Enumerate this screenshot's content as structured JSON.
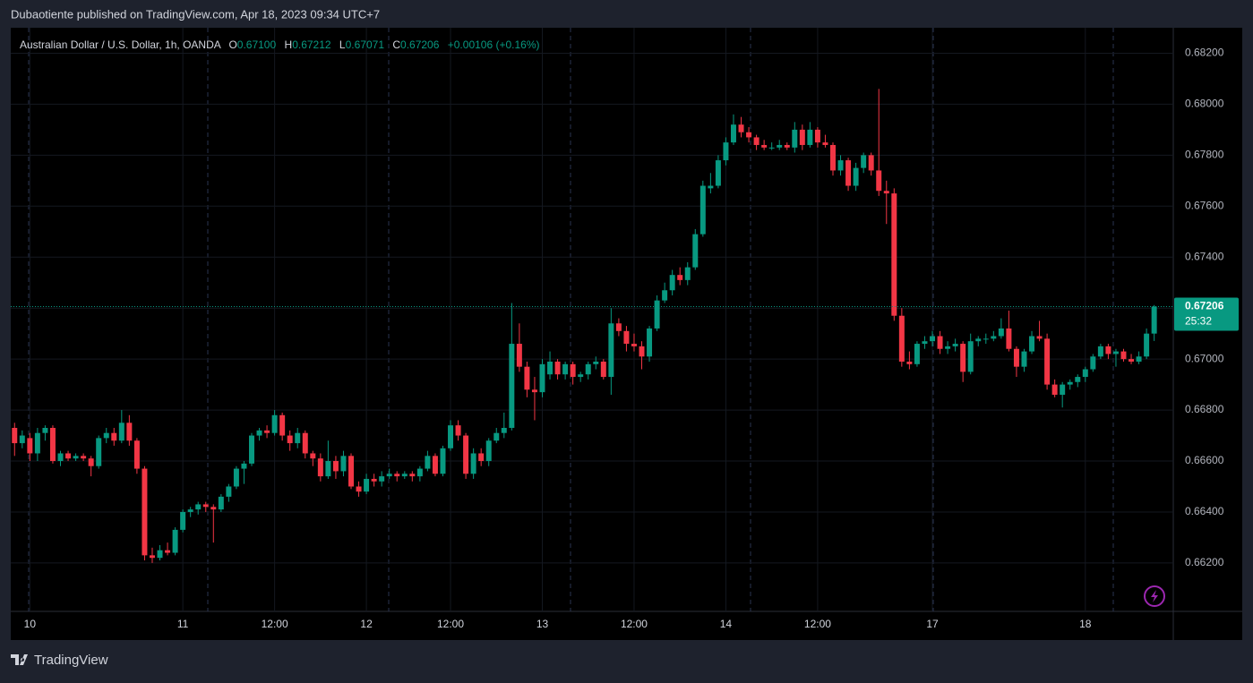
{
  "header": "Dubaotiente published on TradingView.com, Apr 18, 2023 09:34 UTC+7",
  "footer": "TradingView",
  "chart_data": {
    "type": "candlestick",
    "title": "Australian Dollar / U.S. Dollar, 1h, OANDA",
    "legend": {
      "o": "O",
      "open": {
        "value": 0.671,
        "label": "0.67100"
      },
      "h": "H",
      "high": 0.67212,
      "l": "L",
      "low": 0.67071,
      "c": "C",
      "close": 0.67206,
      "change": "+0.00106 (+0.16%)"
    },
    "up_color": "#089981",
    "down_color": "#f23645",
    "last_price": {
      "value": 0.67206,
      "label": "0.67206"
    },
    "countdown": "25:32",
    "grid": true,
    "xlim": [
      -0.5,
      151.5
    ],
    "xticks": [
      {
        "value": 2,
        "label": "10"
      },
      {
        "value": 22,
        "label": "11"
      },
      {
        "value": 34,
        "label": "12:00"
      },
      {
        "value": 46,
        "label": "12"
      },
      {
        "value": 57,
        "label": "12:00"
      },
      {
        "value": 69,
        "label": "13"
      },
      {
        "value": 81,
        "label": "12:00"
      },
      {
        "value": 93,
        "label": "14"
      },
      {
        "value": 105,
        "label": "12:00"
      },
      {
        "value": 120,
        "label": "17"
      },
      {
        "value": 140,
        "label": "18"
      }
    ],
    "ylim": [
      0.6601,
      0.683
    ],
    "yticks": [
      {
        "value": 0.662,
        "label": "0.66200"
      },
      {
        "value": 0.664,
        "label": "0.66400"
      },
      {
        "value": 0.666,
        "label": "0.66600"
      },
      {
        "value": 0.668,
        "label": "0.66800"
      },
      {
        "value": 0.67,
        "label": "0.67000"
      },
      {
        "value": 0.672,
        "label": "0.67200"
      },
      {
        "value": 0.674,
        "label": "0.67400"
      },
      {
        "value": 0.676,
        "label": "0.67600"
      },
      {
        "value": 0.678,
        "label": "0.67800"
      },
      {
        "value": 0.68,
        "label": "0.68000"
      },
      {
        "value": 0.682,
        "label": "0.68200"
      }
    ],
    "ohlc": [
      [
        0.6673,
        0.6675,
        0.6662,
        0.6667
      ],
      [
        0.6667,
        0.6672,
        0.6665,
        0.667
      ],
      [
        0.6669,
        0.6671,
        0.666,
        0.6663
      ],
      [
        0.6663,
        0.6673,
        0.666,
        0.6671
      ],
      [
        0.6671,
        0.6674,
        0.6668,
        0.6673
      ],
      [
        0.6673,
        0.6674,
        0.6659,
        0.666
      ],
      [
        0.666,
        0.6664,
        0.6658,
        0.6663
      ],
      [
        0.6663,
        0.6664,
        0.666,
        0.6661
      ],
      [
        0.6661,
        0.6663,
        0.666,
        0.6662
      ],
      [
        0.6662,
        0.6663,
        0.666,
        0.6661
      ],
      [
        0.6661,
        0.6662,
        0.6654,
        0.6658
      ],
      [
        0.6658,
        0.667,
        0.6657,
        0.6669
      ],
      [
        0.6669,
        0.6673,
        0.6667,
        0.6671
      ],
      [
        0.6671,
        0.6673,
        0.6666,
        0.6668
      ],
      [
        0.6668,
        0.668,
        0.6667,
        0.6675
      ],
      [
        0.6675,
        0.6678,
        0.6666,
        0.6668
      ],
      [
        0.6668,
        0.6669,
        0.6655,
        0.6657
      ],
      [
        0.6657,
        0.6658,
        0.6621,
        0.6623
      ],
      [
        0.6623,
        0.6626,
        0.662,
        0.6622
      ],
      [
        0.6622,
        0.6627,
        0.6621,
        0.6625
      ],
      [
        0.6625,
        0.6628,
        0.6623,
        0.6624
      ],
      [
        0.6624,
        0.6634,
        0.6623,
        0.6633
      ],
      [
        0.6633,
        0.6641,
        0.6632,
        0.664
      ],
      [
        0.664,
        0.6642,
        0.6638,
        0.6641
      ],
      [
        0.6641,
        0.6644,
        0.6639,
        0.6643
      ],
      [
        0.6643,
        0.6644,
        0.664,
        0.6642
      ],
      [
        0.6642,
        0.6643,
        0.6628,
        0.6641
      ],
      [
        0.6641,
        0.6647,
        0.664,
        0.6646
      ],
      [
        0.6646,
        0.6651,
        0.6644,
        0.665
      ],
      [
        0.665,
        0.6658,
        0.6649,
        0.6657
      ],
      [
        0.6657,
        0.666,
        0.6651,
        0.6659
      ],
      [
        0.6659,
        0.6671,
        0.6658,
        0.667
      ],
      [
        0.667,
        0.6673,
        0.6668,
        0.6672
      ],
      [
        0.6672,
        0.6674,
        0.6669,
        0.6671
      ],
      [
        0.6671,
        0.668,
        0.667,
        0.6678
      ],
      [
        0.6678,
        0.6679,
        0.6668,
        0.667
      ],
      [
        0.667,
        0.6672,
        0.6664,
        0.6667
      ],
      [
        0.6667,
        0.6673,
        0.6665,
        0.6671
      ],
      [
        0.6671,
        0.6672,
        0.6661,
        0.6663
      ],
      [
        0.6663,
        0.6664,
        0.6658,
        0.6661
      ],
      [
        0.6661,
        0.6663,
        0.6652,
        0.6654
      ],
      [
        0.6654,
        0.6668,
        0.6653,
        0.666
      ],
      [
        0.666,
        0.6662,
        0.6653,
        0.6656
      ],
      [
        0.6656,
        0.6664,
        0.6654,
        0.6662
      ],
      [
        0.6662,
        0.6663,
        0.6649,
        0.665
      ],
      [
        0.665,
        0.6652,
        0.6646,
        0.6648
      ],
      [
        0.6648,
        0.6655,
        0.6647,
        0.6653
      ],
      [
        0.6653,
        0.6655,
        0.665,
        0.6652
      ],
      [
        0.6652,
        0.6656,
        0.665,
        0.6654
      ],
      [
        0.6654,
        0.6657,
        0.6653,
        0.6655
      ],
      [
        0.6655,
        0.6656,
        0.6652,
        0.6654
      ],
      [
        0.6654,
        0.6656,
        0.6653,
        0.6655
      ],
      [
        0.6655,
        0.6656,
        0.6652,
        0.6654
      ],
      [
        0.6654,
        0.6658,
        0.6652,
        0.6657
      ],
      [
        0.6657,
        0.6664,
        0.6656,
        0.6662
      ],
      [
        0.6662,
        0.6663,
        0.6654,
        0.6655
      ],
      [
        0.6655,
        0.6666,
        0.6654,
        0.6665
      ],
      [
        0.6665,
        0.6676,
        0.6664,
        0.6674
      ],
      [
        0.6674,
        0.6676,
        0.6668,
        0.667
      ],
      [
        0.667,
        0.6671,
        0.6653,
        0.6655
      ],
      [
        0.6655,
        0.6665,
        0.6653,
        0.6663
      ],
      [
        0.6663,
        0.6665,
        0.6658,
        0.666
      ],
      [
        0.666,
        0.6669,
        0.6658,
        0.6668
      ],
      [
        0.6668,
        0.6673,
        0.6667,
        0.6671
      ],
      [
        0.6671,
        0.6679,
        0.6669,
        0.6673
      ],
      [
        0.6673,
        0.6722,
        0.6672,
        0.6706
      ],
      [
        0.6706,
        0.6714,
        0.6695,
        0.6697
      ],
      [
        0.6697,
        0.6699,
        0.6685,
        0.6688
      ],
      [
        0.6688,
        0.6693,
        0.6676,
        0.6687
      ],
      [
        0.6687,
        0.67,
        0.6685,
        0.6698
      ],
      [
        0.6694,
        0.6703,
        0.6692,
        0.6699
      ],
      [
        0.6699,
        0.67,
        0.6692,
        0.6694
      ],
      [
        0.6694,
        0.6699,
        0.6692,
        0.6698
      ],
      [
        0.6698,
        0.6699,
        0.669,
        0.6693
      ],
      [
        0.6693,
        0.6695,
        0.6691,
        0.6694
      ],
      [
        0.6694,
        0.6699,
        0.6692,
        0.6698
      ],
      [
        0.6698,
        0.6701,
        0.6696,
        0.6699
      ],
      [
        0.6699,
        0.67,
        0.6692,
        0.6693
      ],
      [
        0.6693,
        0.672,
        0.6686,
        0.6714
      ],
      [
        0.6714,
        0.6716,
        0.6709,
        0.6711
      ],
      [
        0.6711,
        0.6713,
        0.6703,
        0.6706
      ],
      [
        0.6706,
        0.671,
        0.6703,
        0.6705
      ],
      [
        0.6705,
        0.6707,
        0.6696,
        0.6701
      ],
      [
        0.6701,
        0.6713,
        0.6699,
        0.6712
      ],
      [
        0.6712,
        0.6725,
        0.6711,
        0.6723
      ],
      [
        0.6723,
        0.673,
        0.6722,
        0.6727
      ],
      [
        0.6727,
        0.6735,
        0.6725,
        0.6733
      ],
      [
        0.6733,
        0.6736,
        0.6729,
        0.6731
      ],
      [
        0.6731,
        0.6738,
        0.6729,
        0.6736
      ],
      [
        0.6736,
        0.6751,
        0.6735,
        0.6749
      ],
      [
        0.6749,
        0.677,
        0.6748,
        0.6768
      ],
      [
        0.6767,
        0.6773,
        0.6765,
        0.6768
      ],
      [
        0.6768,
        0.678,
        0.6767,
        0.6778
      ],
      [
        0.6778,
        0.6787,
        0.6776,
        0.6785
      ],
      [
        0.6785,
        0.6796,
        0.6784,
        0.6792
      ],
      [
        0.6792,
        0.6795,
        0.6787,
        0.6789
      ],
      [
        0.6789,
        0.6791,
        0.6785,
        0.6787
      ],
      [
        0.6787,
        0.6788,
        0.6782,
        0.6784
      ],
      [
        0.6784,
        0.6786,
        0.6782,
        0.6783
      ],
      [
        0.6783,
        0.6785,
        0.6782,
        0.6783
      ],
      [
        0.6783,
        0.6786,
        0.6782,
        0.6784
      ],
      [
        0.6784,
        0.6785,
        0.6782,
        0.6783
      ],
      [
        0.6783,
        0.6793,
        0.6781,
        0.679
      ],
      [
        0.679,
        0.6792,
        0.6782,
        0.6784
      ],
      [
        0.6784,
        0.6793,
        0.6783,
        0.679
      ],
      [
        0.679,
        0.6791,
        0.6783,
        0.6785
      ],
      [
        0.6785,
        0.6788,
        0.6783,
        0.6784
      ],
      [
        0.6784,
        0.6785,
        0.6772,
        0.6774
      ],
      [
        0.6774,
        0.678,
        0.6772,
        0.6778
      ],
      [
        0.6778,
        0.6779,
        0.6766,
        0.6768
      ],
      [
        0.6768,
        0.6777,
        0.6766,
        0.6775
      ],
      [
        0.6775,
        0.6781,
        0.6773,
        0.678
      ],
      [
        0.678,
        0.6781,
        0.6772,
        0.6774
      ],
      [
        0.6774,
        0.6806,
        0.6764,
        0.6766
      ],
      [
        0.6766,
        0.677,
        0.6753,
        0.6765
      ],
      [
        0.6765,
        0.6767,
        0.6715,
        0.6717
      ],
      [
        0.6717,
        0.672,
        0.6697,
        0.6699
      ],
      [
        0.6699,
        0.6703,
        0.6696,
        0.6698
      ],
      [
        0.6698,
        0.6707,
        0.6697,
        0.6706
      ],
      [
        0.6706,
        0.6709,
        0.6704,
        0.6707
      ],
      [
        0.6707,
        0.6711,
        0.6705,
        0.6709
      ],
      [
        0.6709,
        0.6711,
        0.6702,
        0.6704
      ],
      [
        0.6704,
        0.6707,
        0.6702,
        0.6705
      ],
      [
        0.6705,
        0.6708,
        0.6703,
        0.6706
      ],
      [
        0.6706,
        0.6707,
        0.6691,
        0.6695
      ],
      [
        0.6695,
        0.671,
        0.6694,
        0.6707
      ],
      [
        0.6707,
        0.6709,
        0.6705,
        0.6708
      ],
      [
        0.6708,
        0.671,
        0.6706,
        0.6708
      ],
      [
        0.6708,
        0.6711,
        0.6707,
        0.6709
      ],
      [
        0.6709,
        0.6716,
        0.6708,
        0.6712
      ],
      [
        0.6712,
        0.6719,
        0.6703,
        0.6704
      ],
      [
        0.6704,
        0.6705,
        0.6693,
        0.6697
      ],
      [
        0.6697,
        0.6704,
        0.6695,
        0.6703
      ],
      [
        0.6703,
        0.6711,
        0.6702,
        0.6709
      ],
      [
        0.6709,
        0.6715,
        0.6707,
        0.6708
      ],
      [
        0.6708,
        0.671,
        0.6688,
        0.669
      ],
      [
        0.669,
        0.6692,
        0.6685,
        0.6686
      ],
      [
        0.6686,
        0.6691,
        0.6681,
        0.669
      ],
      [
        0.669,
        0.6692,
        0.6688,
        0.6691
      ],
      [
        0.6691,
        0.6694,
        0.6689,
        0.6693
      ],
      [
        0.6693,
        0.6697,
        0.6691,
        0.6696
      ],
      [
        0.6696,
        0.6702,
        0.6695,
        0.6701
      ],
      [
        0.6701,
        0.6706,
        0.67,
        0.6705
      ],
      [
        0.6705,
        0.6706,
        0.67,
        0.6702
      ],
      [
        0.6702,
        0.6704,
        0.6697,
        0.6703
      ],
      [
        0.6703,
        0.6704,
        0.6699,
        0.67
      ],
      [
        0.67,
        0.6702,
        0.6698,
        0.6699
      ],
      [
        0.6699,
        0.6703,
        0.6698,
        0.6701
      ],
      [
        0.6701,
        0.6712,
        0.67,
        0.671
      ],
      [
        0.671,
        0.67212,
        0.67071,
        0.67206
      ]
    ]
  }
}
